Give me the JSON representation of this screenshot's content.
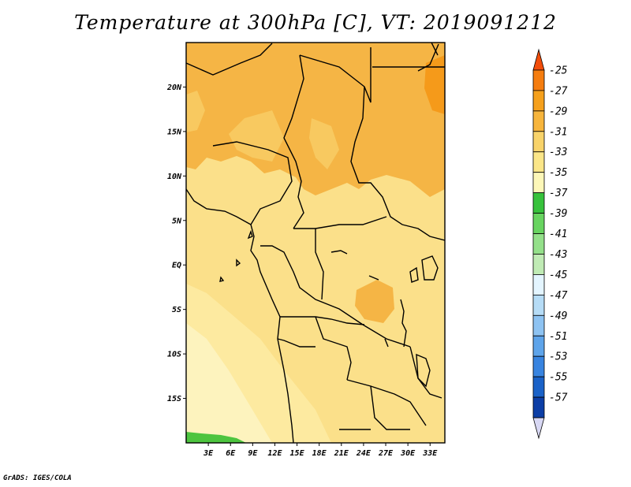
{
  "title": "Temperature at 300hPa [C], VT: 2019091212",
  "footer": "GrADS: IGES/COLA",
  "map": {
    "lon_range": [
      0,
      35
    ],
    "lat_range": [
      -20,
      25
    ],
    "lat_ticks": [
      {
        "value": 20,
        "label": "20N"
      },
      {
        "value": 15,
        "label": "15N"
      },
      {
        "value": 10,
        "label": "10N"
      },
      {
        "value": 5,
        "label": "5N"
      },
      {
        "value": 0,
        "label": "EQ"
      },
      {
        "value": -5,
        "label": "5S"
      },
      {
        "value": -10,
        "label": "10S"
      },
      {
        "value": -15,
        "label": "15S"
      }
    ],
    "lon_ticks": [
      {
        "value": 3,
        "label": "3E"
      },
      {
        "value": 6,
        "label": "6E"
      },
      {
        "value": 9,
        "label": "9E"
      },
      {
        "value": 12,
        "label": "12E"
      },
      {
        "value": 15,
        "label": "15E"
      },
      {
        "value": 18,
        "label": "18E"
      },
      {
        "value": 21,
        "label": "21E"
      },
      {
        "value": 24,
        "label": "24E"
      },
      {
        "value": 27,
        "label": "27E"
      },
      {
        "value": 30,
        "label": "30E"
      },
      {
        "value": 33,
        "label": "33E"
      }
    ]
  },
  "colorbar": {
    "levels": [
      "-25",
      "-27",
      "-29",
      "-31",
      "-33",
      "-35",
      "-37",
      "-39",
      "-41",
      "-43",
      "-45",
      "-47",
      "-49",
      "-51",
      "-53",
      "-55",
      "-57"
    ],
    "colors": [
      "#f24d0a",
      "#f57d0f",
      "#f5a01c",
      "#f7b53c",
      "#f8d36a",
      "#fbe688",
      "#fdf7b8",
      "#37c23c",
      "#68d460",
      "#94e08a",
      "#c0ebb5",
      "#e4f5ff",
      "#b6dcf6",
      "#8ec3f2",
      "#5ea4ea",
      "#3884e0",
      "#1a62c8",
      "#0c3ea6",
      "#071a78",
      "#d8d8f4"
    ]
  }
}
